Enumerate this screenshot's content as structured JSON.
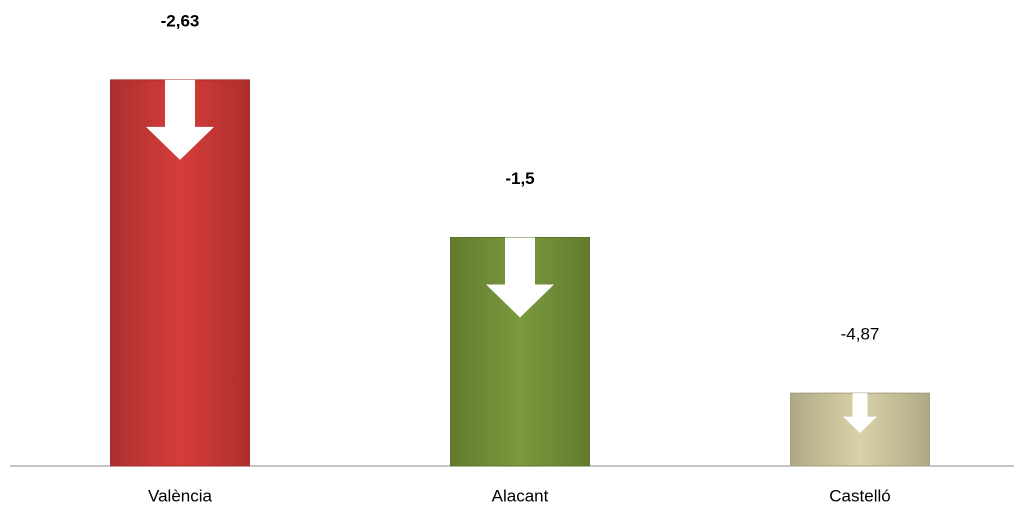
{
  "chart_data": {
    "type": "bar",
    "categories": [
      "València",
      "Alacant",
      "Castelló"
    ],
    "values": [
      98,
      58,
      18.5
    ],
    "colors": [
      "#d63c3a",
      "#7a9a3c",
      "#d9d2a8"
    ],
    "annotations": [
      "-2,63",
      "-1,5",
      "-4,87"
    ],
    "annotation_bold": [
      true,
      true,
      false
    ],
    "ylim": [
      0,
      100
    ]
  }
}
